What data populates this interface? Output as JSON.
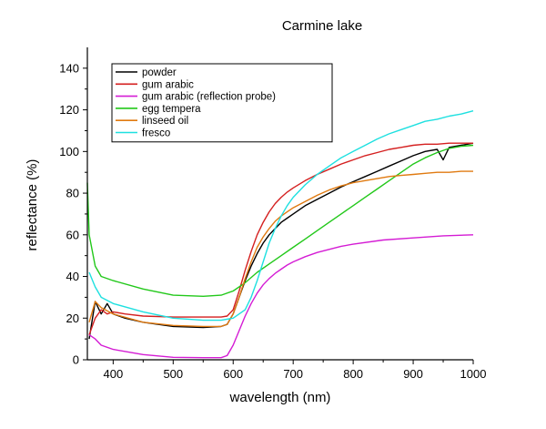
{
  "chart_data": {
    "type": "line",
    "title": "Carmine lake",
    "xlabel": "wavelength (nm)",
    "ylabel": "reflectance (%)",
    "xlim": [
      357,
      1000
    ],
    "ylim": [
      0,
      150
    ],
    "x_ticks": [
      400,
      500,
      600,
      700,
      800,
      900,
      1000
    ],
    "y_ticks": [
      0,
      20,
      40,
      60,
      80,
      100,
      120,
      140
    ],
    "grid": false,
    "legend_position": "top-left",
    "series": [
      {
        "name": "powder",
        "color": "#000000",
        "x": [
          360,
          370,
          380,
          390,
          400,
          420,
          450,
          500,
          550,
          580,
          590,
          600,
          610,
          620,
          630,
          640,
          650,
          660,
          670,
          680,
          690,
          700,
          720,
          740,
          760,
          780,
          800,
          820,
          840,
          860,
          880,
          900,
          920,
          940,
          950,
          960,
          980,
          1000
        ],
        "y": [
          10,
          28,
          22,
          27,
          22,
          20,
          18,
          16,
          15.5,
          16,
          17,
          22,
          30,
          38,
          45,
          51,
          56,
          60,
          63,
          66,
          68,
          70,
          74,
          77,
          80,
          83,
          85.5,
          88,
          90.5,
          93,
          95.5,
          98,
          100,
          101,
          96,
          102,
          103,
          104
        ]
      },
      {
        "name": "gum arabic",
        "color": "#d41f1f",
        "x": [
          360,
          370,
          380,
          390,
          400,
          420,
          450,
          500,
          550,
          580,
          590,
          600,
          610,
          620,
          630,
          640,
          650,
          660,
          670,
          680,
          690,
          700,
          720,
          740,
          760,
          780,
          800,
          820,
          840,
          860,
          880,
          900,
          920,
          940,
          960,
          980,
          1000
        ],
        "y": [
          12,
          20,
          24,
          22,
          23,
          22,
          21,
          20.5,
          20.5,
          20.5,
          21,
          24,
          33,
          43,
          52,
          60,
          66,
          71,
          75,
          78,
          80.5,
          82.5,
          86,
          89,
          91.5,
          94,
          96,
          98,
          99.5,
          101,
          102,
          103,
          103.5,
          103.5,
          104,
          104,
          104
        ]
      },
      {
        "name": "gum arabic (reflection probe)",
        "color": "#d41cd4",
        "x": [
          360,
          370,
          380,
          400,
          450,
          500,
          550,
          580,
          590,
          600,
          610,
          620,
          630,
          640,
          650,
          660,
          670,
          680,
          690,
          700,
          720,
          740,
          760,
          780,
          800,
          850,
          900,
          950,
          1000
        ],
        "y": [
          12,
          10,
          7,
          5,
          2.5,
          1.2,
          1,
          1,
          2,
          7,
          14,
          21,
          27,
          32,
          36,
          39,
          41.5,
          43.5,
          45.5,
          47,
          49.5,
          51.5,
          53,
          54.5,
          55.5,
          57.5,
          58.5,
          59.5,
          60
        ]
      },
      {
        "name": "egg tempera",
        "color": "#22c81a",
        "x": [
          357,
          360,
          370,
          380,
          400,
          450,
          500,
          550,
          580,
          600,
          620,
          640,
          660,
          680,
          700,
          720,
          740,
          760,
          780,
          800,
          820,
          840,
          860,
          880,
          900,
          920,
          940,
          960,
          980,
          1000
        ],
        "y": [
          85,
          60,
          45,
          40,
          38,
          34,
          31,
          30.5,
          31,
          33,
          37,
          42,
          46,
          50,
          54,
          58,
          62,
          66,
          70,
          74,
          78,
          82,
          86,
          90,
          94,
          97,
          99.5,
          101.5,
          102.5,
          103
        ]
      },
      {
        "name": "linseed oil",
        "color": "#e07a10",
        "x": [
          360,
          370,
          380,
          400,
          450,
          500,
          550,
          580,
          590,
          600,
          610,
          620,
          630,
          640,
          650,
          660,
          670,
          680,
          690,
          700,
          720,
          740,
          760,
          780,
          800,
          820,
          840,
          860,
          880,
          900,
          920,
          940,
          960,
          980,
          1000
        ],
        "y": [
          18,
          28,
          25,
          22,
          18,
          16.5,
          16,
          16,
          17,
          22,
          30,
          39,
          47,
          54,
          59,
          63,
          66.5,
          69,
          71,
          73,
          76,
          79,
          81.5,
          83.5,
          85,
          86,
          87,
          88,
          88.5,
          89,
          89.5,
          90,
          90,
          90.5,
          90.5
        ]
      },
      {
        "name": "fresco",
        "color": "#1ee0e0",
        "x": [
          360,
          370,
          380,
          400,
          450,
          500,
          550,
          580,
          600,
          620,
          630,
          640,
          650,
          660,
          670,
          680,
          690,
          700,
          720,
          740,
          760,
          780,
          800,
          820,
          840,
          860,
          880,
          900,
          920,
          940,
          960,
          980,
          1000
        ],
        "y": [
          42,
          35,
          30,
          27,
          23,
          20,
          19,
          19,
          20,
          24,
          30,
          38,
          47,
          56,
          63,
          69,
          74,
          78,
          84,
          89,
          93,
          97,
          100,
          103,
          106,
          108.5,
          110.5,
          112.5,
          114.5,
          115.5,
          117,
          118,
          119.5
        ]
      }
    ]
  }
}
